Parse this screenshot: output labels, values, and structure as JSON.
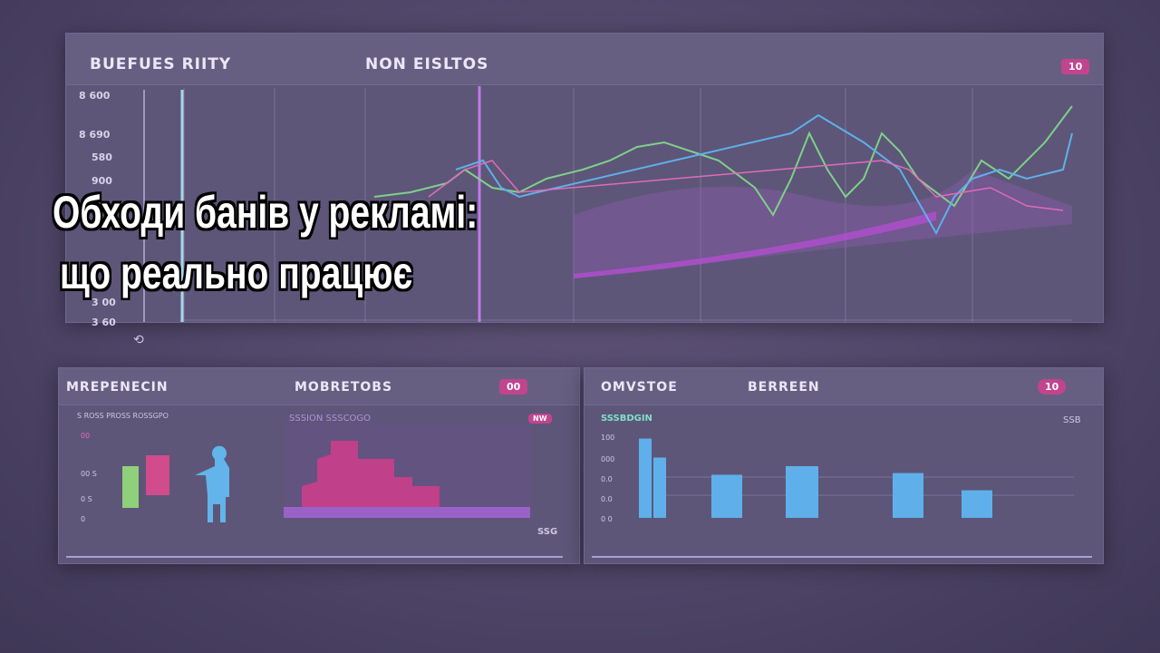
{
  "headline": {
    "line1": "Обходи банів у рекламі:",
    "line2": "що реально працює"
  },
  "top_panel": {
    "title_left": "BUEFUES  RIITY",
    "title_center": "NON EISLTOS",
    "badge": "10",
    "y_labels": [
      "8 600",
      "8 690",
      "580",
      "900",
      "3 00",
      "3 60"
    ]
  },
  "bottom_left_panel": {
    "title_left": "MREPENECIN",
    "title_center": "MOBRETOBS",
    "badge": "00",
    "sub_left": "S ROSS PROSS ROSSGPO",
    "sub_right": "SSSION SSSCOGO",
    "sub_badge": "NW",
    "y_labels": [
      "00",
      "00 S",
      "0 S",
      "0"
    ],
    "foot_right": "SSG"
  },
  "bottom_right_panel": {
    "title_left": "OMVSTOE",
    "title_center": "BERREEN",
    "badge": "10",
    "sub_left": "SSSBDGIN",
    "sub_right": "SSB",
    "y_labels": [
      "100",
      "000",
      "0.0",
      "0.0",
      "0 0"
    ],
    "bar_levels": [
      0.92,
      0.7,
      0.5,
      0.6,
      0.52,
      0.32
    ]
  },
  "colors": {
    "accent_pink": "#c2448f",
    "accent_blue": "#5fb0ea",
    "accent_green": "#7fd08a",
    "accent_purple": "#a25bd6"
  }
}
